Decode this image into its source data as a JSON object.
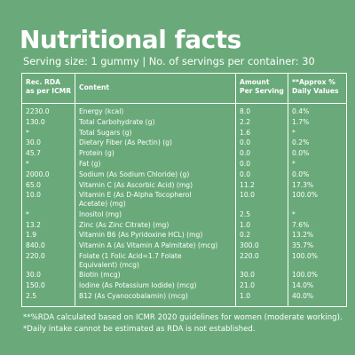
{
  "title": "Nutritional facts",
  "serving_line": "Serving size: 1 gummy  |  No. of servings per container: 30",
  "table": {
    "headers": {
      "rda": [
        "Rec. RDA",
        "as per ICMR"
      ],
      "content": "Content",
      "amount": [
        "Amount",
        "Per Serving"
      ],
      "approx": [
        "**Approx %",
        "Daily Values"
      ]
    },
    "rows": [
      {
        "rda": "2230.0",
        "content": [
          "Energy (kcal)"
        ],
        "amount": "8.0",
        "approx": "0.4%"
      },
      {
        "rda": "130.0",
        "content": [
          "Total Carbohydrate (g)"
        ],
        "amount": "2.2",
        "approx": "1.7%"
      },
      {
        "rda": "*",
        "content": [
          "Total Sugars (g)"
        ],
        "amount": "1.6",
        "approx": "*"
      },
      {
        "rda": "30.0",
        "content": [
          "Dietary Fiber (As Pectin) (g)"
        ],
        "amount": "0.0",
        "approx": "0.2%"
      },
      {
        "rda": "45.7",
        "content": [
          "Protein (g)"
        ],
        "amount": "0.0",
        "approx": "0.0%"
      },
      {
        "rda": "*",
        "content": [
          "Fat (g)"
        ],
        "amount": "0.0",
        "approx": "*"
      },
      {
        "rda": "2000.0",
        "content": [
          "Sodium (As Sodium Chloride) (g)"
        ],
        "amount": "0.0",
        "approx": "0.0%"
      },
      {
        "rda": "65.0",
        "content": [
          "Vitamin C (As Ascorbic Acid) (mg)"
        ],
        "amount": "11.2",
        "approx": "17.3%"
      },
      {
        "rda": "10.0",
        "content": [
          "Vitamin E (As D-Alpha Tocopherol",
          "Acetate) (mg)"
        ],
        "amount": "10.0",
        "approx": "100.0%"
      },
      {
        "rda": "*",
        "content": [
          "Inositol (mg)"
        ],
        "amount": "2.5",
        "approx": "*"
      },
      {
        "rda": "13.2",
        "content": [
          "Zinc (As Zinc Citrate) (mg)"
        ],
        "amount": "1.0",
        "approx": "7.6%"
      },
      {
        "rda": "1.9",
        "content": [
          "Vitamin B6 (As Pyridoxine HCL) (mg)"
        ],
        "amount": "0.2",
        "approx": "13.2%"
      },
      {
        "rda": "840.0",
        "content": [
          "Vitamin A (As Vitamin A Palmitate) (mcg)"
        ],
        "amount": "300.0",
        "approx": "35.7%"
      },
      {
        "rda": "220.0",
        "content": [
          "Folate (1 Folic Acid=1.7 Folate",
          "Equivalent) (mcg)"
        ],
        "amount": "220.0",
        "approx": "100.0%"
      },
      {
        "rda": "30.0",
        "content": [
          "Biotin (mcg)"
        ],
        "amount": "30.0",
        "approx": "100.0%"
      },
      {
        "rda": "150.0",
        "content": [
          "Iodine (As Potassium Iodide) (mcg)"
        ],
        "amount": "21.0",
        "approx": "14.0%"
      },
      {
        "rda": "2.5",
        "content": [
          "B12 (As Cyanocobalamin) (mcg)"
        ],
        "amount": "1.0",
        "approx": "40.0%"
      }
    ]
  },
  "footnotes": [
    "**%RDA calculated based on ICMR 2020 guidelines for women (moderate working).",
    "*Daily intake cannot be estimated as RDA is not established."
  ]
}
